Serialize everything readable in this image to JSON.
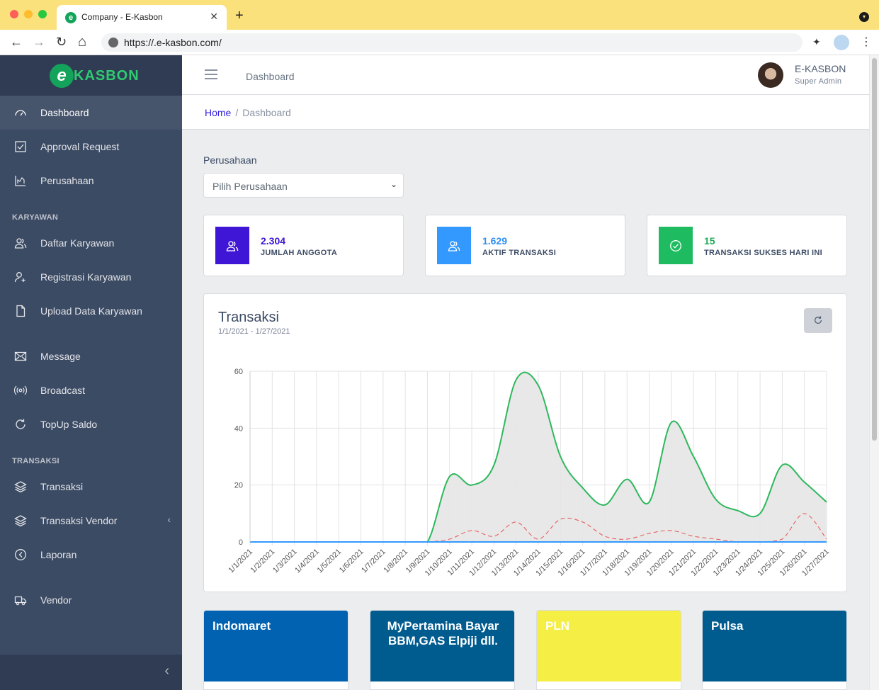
{
  "browser": {
    "tab_title": "Company - E-Kasbon",
    "tab_close": "✕",
    "new_tab": "+",
    "url": "https://.e-kasbon.com/",
    "back": "←",
    "forward": "→",
    "reload": "↻",
    "home": "⌂",
    "menu": "⋮",
    "colors": {
      "tabbar": "#fbe17c",
      "close": "#fe5f57",
      "minimize": "#febc2e",
      "maximize": "#28c840"
    }
  },
  "brand": {
    "mark": "e",
    "text": "KASBON"
  },
  "sidebar": {
    "items_top": [
      {
        "label": "Dashboard",
        "icon": "speedometer-icon",
        "active": true
      },
      {
        "label": "Approval Request",
        "icon": "check-square-icon"
      },
      {
        "label": "Perusahaan",
        "icon": "chart-icon"
      }
    ],
    "section_karyawan": "KARYAWAN",
    "items_karyawan": [
      {
        "label": "Daftar Karyawan",
        "icon": "people-icon"
      },
      {
        "label": "Registrasi Karyawan",
        "icon": "user-plus-icon"
      },
      {
        "label": "Upload Data Karyawan",
        "icon": "file-icon"
      }
    ],
    "items_msg": [
      {
        "label": "Message",
        "icon": "envelope-icon"
      },
      {
        "label": "Broadcast",
        "icon": "broadcast-icon"
      },
      {
        "label": "TopUp Saldo",
        "icon": "reload-icon"
      }
    ],
    "section_transaksi": "TRANSAKSI",
    "items_transaksi": [
      {
        "label": "Transaksi",
        "icon": "layers-icon"
      },
      {
        "label": "Transaksi Vendor",
        "icon": "layers-icon",
        "caret": "‹"
      },
      {
        "label": "Laporan",
        "icon": "circle-arrow-icon"
      }
    ],
    "items_bottom": [
      {
        "label": "Vendor",
        "icon": "truck-icon"
      }
    ],
    "toggler": "‹"
  },
  "header": {
    "nav_label": "Dashboard",
    "user_name": "E-KASBON",
    "user_role": "Super Admin"
  },
  "breadcrumb": {
    "home": "Home",
    "sep": "/",
    "current": "Dashboard"
  },
  "filter": {
    "label": "Perusahaan",
    "selected": "Pilih Perusahaan"
  },
  "widgets": [
    {
      "value": "2.304",
      "label": "JUMLAH ANGGOTA",
      "color": "#4016d6",
      "value_color": "#3d14d6",
      "icon": "people-icon"
    },
    {
      "value": "1.629",
      "label": "AKTIF TRANSAKSI",
      "color": "#3399ff",
      "value_color": "#2f8ff2",
      "icon": "people-icon"
    },
    {
      "value": "15",
      "label": "TRANSAKSI SUKSES HARI INI",
      "color": "#1fbb60",
      "value_color": "#1fab56",
      "icon": "check-circle-icon"
    }
  ],
  "chart_card": {
    "title": "Transaksi",
    "subtitle": "1/1/2021 - 1/27/2021"
  },
  "chart_data": {
    "type": "line",
    "x": [
      "1/1/2021",
      "1/2/2021",
      "1/3/2021",
      "1/4/2021",
      "1/5/2021",
      "1/6/2021",
      "1/7/2021",
      "1/8/2021",
      "1/9/2021",
      "1/10/2021",
      "1/11/2021",
      "1/12/2021",
      "1/13/2021",
      "1/14/2021",
      "1/15/2021",
      "1/16/2021",
      "1/17/2021",
      "1/18/2021",
      "1/19/2021",
      "1/20/2021",
      "1/21/2021",
      "1/22/2021",
      "1/23/2021",
      "1/24/2021",
      "1/25/2021",
      "1/26/2021",
      "1/27/2021"
    ],
    "series": [
      {
        "values": [
          0,
          0,
          0,
          0,
          0,
          0,
          0,
          0,
          0,
          23,
          20,
          27,
          57,
          55,
          30,
          19,
          13,
          22,
          14,
          42,
          30,
          15,
          11,
          10,
          27,
          21,
          14
        ],
        "color": "#2eb85c",
        "fill": "#e6e6e6",
        "dash": false
      },
      {
        "values": [
          0,
          0,
          0,
          0,
          0,
          0,
          0,
          0,
          0,
          1,
          4,
          2,
          7,
          1,
          8,
          7,
          2,
          1,
          3,
          4,
          2,
          1,
          0,
          0,
          1,
          10,
          1
        ],
        "color": "#e55353",
        "dash": true
      },
      {
        "values": [
          0,
          0,
          0,
          0,
          0,
          0,
          0,
          0,
          0,
          0,
          0,
          0,
          0,
          0,
          0,
          0,
          0,
          0,
          0,
          0,
          0,
          0,
          0,
          0,
          0,
          0,
          0
        ],
        "color": "#3399ff",
        "dash": false
      }
    ],
    "y_ticks": [
      0,
      20,
      40,
      60
    ],
    "ylim": [
      0,
      60
    ],
    "grid": true,
    "legend": "none"
  },
  "vendors": [
    {
      "name": "Indomaret",
      "color": "#0062b1",
      "center": false
    },
    {
      "name": "MyPertamina Bayar BBM,GAS Elpiji dll.",
      "color": "#005b8f",
      "center": true
    },
    {
      "name": "PLN",
      "color": "#f5ee45",
      "center": false
    },
    {
      "name": "Pulsa",
      "color": "#005b8f",
      "center": false
    }
  ]
}
